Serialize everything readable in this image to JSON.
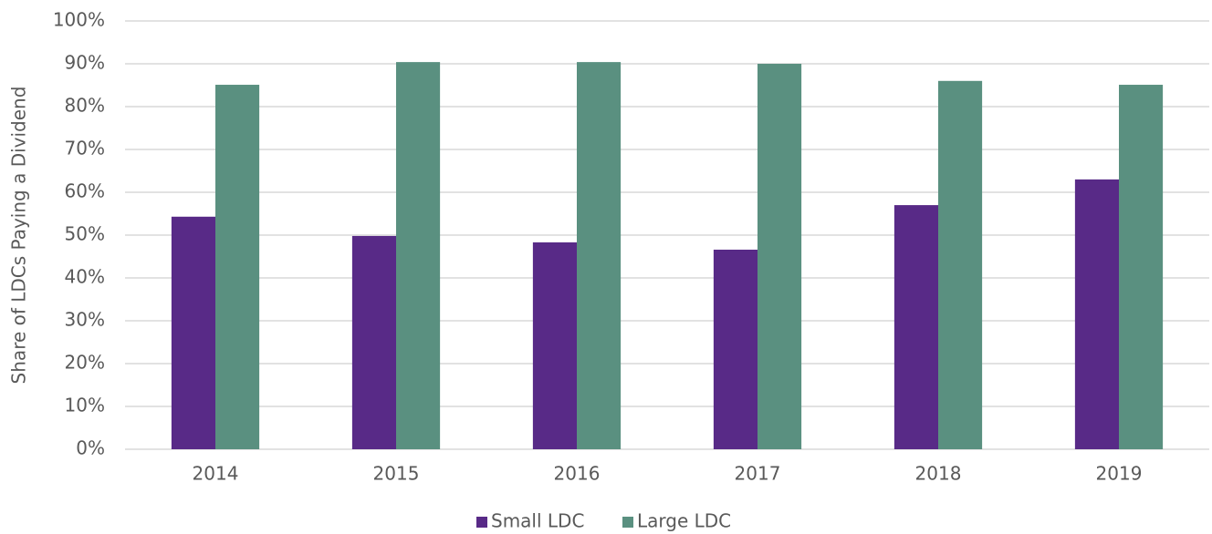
{
  "chart_data": {
    "type": "bar",
    "y_label": "Share of LDCs Paying a Dividend",
    "categories": [
      "2014",
      "2015",
      "2016",
      "2017",
      "2018",
      "2019"
    ],
    "series": [
      {
        "name": "Small LDC",
        "color": "#582a87",
        "values": [
          54.3,
          49.8,
          48.3,
          46.6,
          57.0,
          63.0
        ]
      },
      {
        "name": "Large LDC",
        "color": "#5a9080",
        "values": [
          85.1,
          90.4,
          90.4,
          90.0,
          86.0,
          85.1
        ]
      }
    ],
    "ylim": [
      0,
      100
    ],
    "yticks": [
      {
        "value": 0,
        "label": "0%"
      },
      {
        "value": 10,
        "label": "10%"
      },
      {
        "value": 20,
        "label": "20%"
      },
      {
        "value": 30,
        "label": "30%"
      },
      {
        "value": 40,
        "label": "40%"
      },
      {
        "value": 50,
        "label": "50%"
      },
      {
        "value": 60,
        "label": "60%"
      },
      {
        "value": 70,
        "label": "70%"
      },
      {
        "value": 80,
        "label": "80%"
      },
      {
        "value": 90,
        "label": "90%"
      },
      {
        "value": 100,
        "label": "100%"
      }
    ],
    "grid": true,
    "legend": "bottom"
  }
}
